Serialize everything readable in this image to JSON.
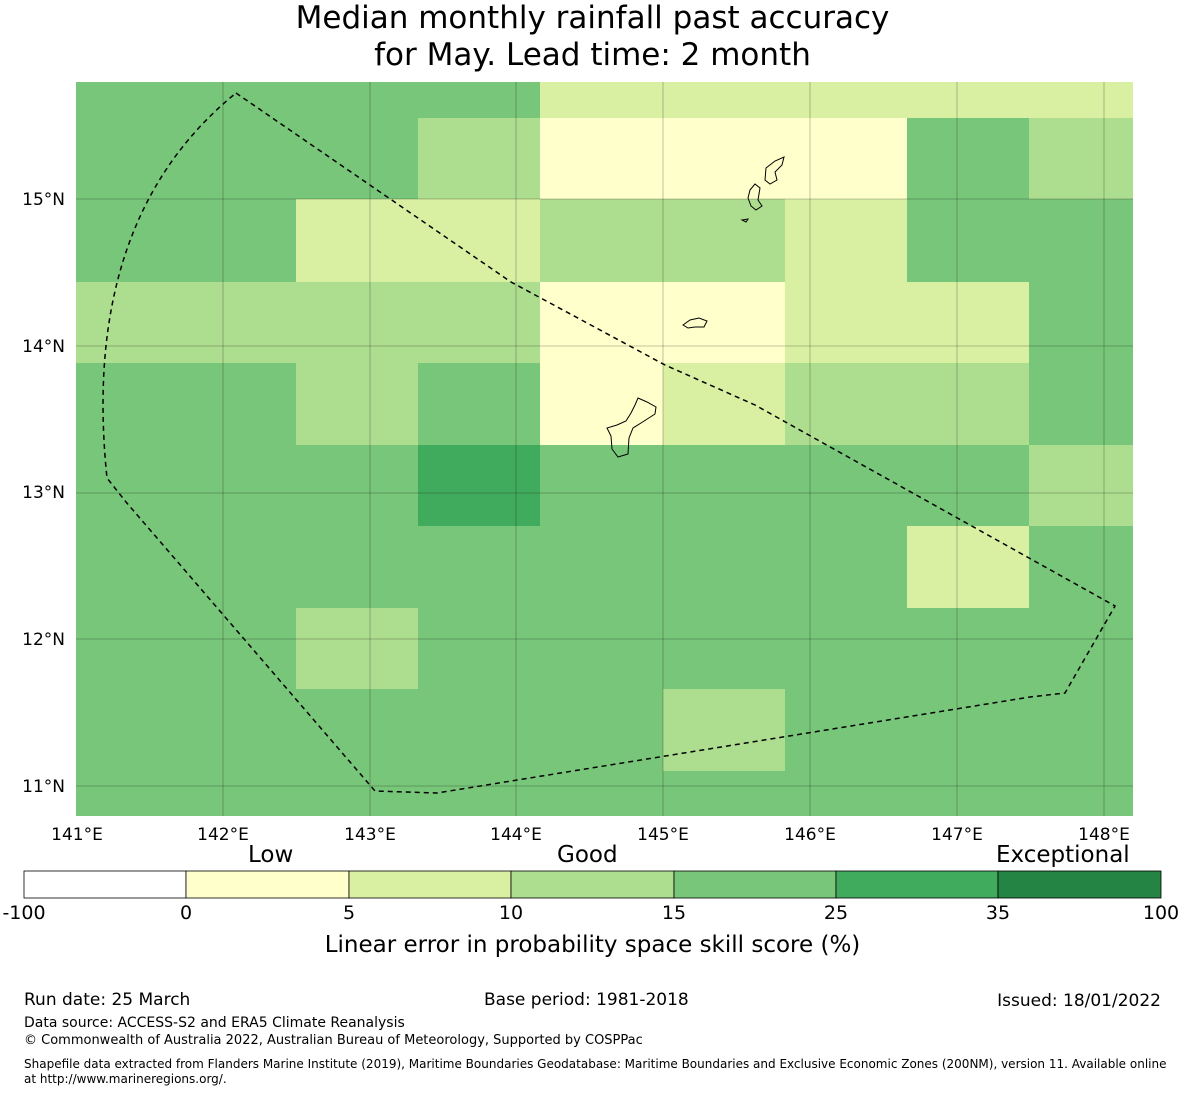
{
  "title_line1": "Median monthly rainfall past accuracy",
  "title_line2": "for May. Lead time: 2 month",
  "map": {
    "x_ticks": [
      "141°E",
      "142°E",
      "143°E",
      "144°E",
      "145°E",
      "146°E",
      "147°E",
      "148°E"
    ],
    "y_ticks": [
      "15°N",
      "14°N",
      "13°N",
      "12°N",
      "11°N"
    ],
    "skill_grid_rows_north_to_south": [
      [
        "15-25",
        "15-25",
        "15-25",
        "5-10",
        "5-10",
        "5-10",
        "5-10",
        "5-10"
      ],
      [
        "15-25",
        "15-25",
        "10-15",
        "0-5",
        "0-5",
        "0-5",
        "15-25",
        "10-15"
      ],
      [
        "15-25",
        "5-10",
        "5-10",
        "10-15",
        "10-15",
        "5-10",
        "15-25",
        "15-25"
      ],
      [
        "10-15",
        "10-15",
        "10-15",
        "0-5",
        "0-5",
        "5-10",
        "5-10",
        "15-25"
      ],
      [
        "15-25",
        "10-15",
        "15-25",
        "0-5",
        "5-10",
        "10-15",
        "10-15",
        "15-25"
      ],
      [
        "15-25",
        "15-25",
        "25-35",
        "15-25",
        "15-25",
        "15-25",
        "15-25",
        "10-15"
      ],
      [
        "15-25",
        "15-25",
        "15-25",
        "15-25",
        "15-25",
        "15-25",
        "5-10",
        "15-25"
      ],
      [
        "15-25",
        "10-15",
        "15-25",
        "15-25",
        "15-25",
        "15-25",
        "15-25",
        "15-25"
      ],
      [
        "15-25",
        "15-25",
        "15-25",
        "15-25",
        "10-15",
        "15-25",
        "15-25",
        "15-25"
      ]
    ]
  },
  "colorbar": {
    "words": {
      "low": "Low",
      "good": "Good",
      "exceptional": "Exceptional"
    },
    "bins": [
      {
        "range": "-100 to 0",
        "color": "#ffffff"
      },
      {
        "range": "0 to 5",
        "color": "#ffffcc"
      },
      {
        "range": "5 to 10",
        "color": "#d9f0a3"
      },
      {
        "range": "10 to 15",
        "color": "#addd8e"
      },
      {
        "range": "15 to 25",
        "color": "#78c679"
      },
      {
        "range": "25 to 35",
        "color": "#41ab5d"
      },
      {
        "range": "35 to 100",
        "color": "#238443"
      }
    ],
    "ticks": [
      "-100",
      "0",
      "5",
      "10",
      "15",
      "25",
      "35",
      "100"
    ],
    "label": "Linear error in probability space skill score (%)"
  },
  "footer": {
    "run_date": "Run date: 25 March",
    "base_period": "Base period: 1981-2018",
    "issued": "Issued: 18/01/2022",
    "data_source": "Data source: ACCESS-S2 and ERA5 Climate Reanalysis",
    "copyright": "© Commonwealth of Australia 2022, Australian Bureau of Meteorology, Supported by COSPPac",
    "shapefile_line1": "Shapefile data extracted from Flanders Marine Institute (2019), Maritime Boundaries Geodatabase: Maritime Boundaries and Exclusive Economic Zones (200NM), version 11. Available online",
    "shapefile_line2": "at http://www.marineregions.org/."
  }
}
